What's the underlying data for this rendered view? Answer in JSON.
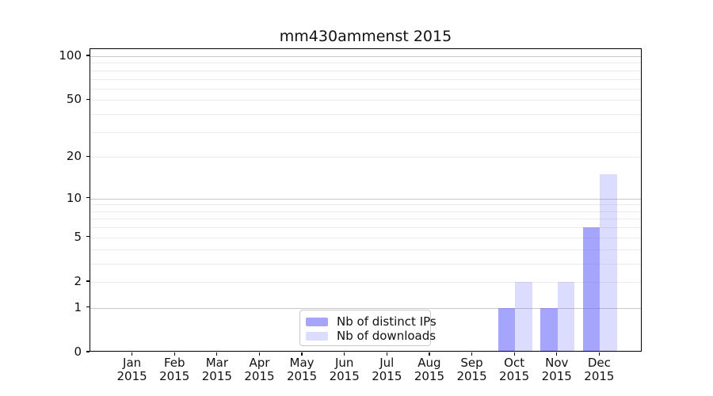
{
  "chart_data": {
    "type": "bar",
    "title": "mm430ammenst 2015",
    "categories": [
      "Jan",
      "Feb",
      "Mar",
      "Apr",
      "May",
      "Jun",
      "Jul",
      "Aug",
      "Sep",
      "Oct",
      "Nov",
      "Dec"
    ],
    "category_year": "2015",
    "series": [
      {
        "name": "Nb of distinct IPs",
        "color": "rgba(110,110,250,0.62)",
        "values": [
          0,
          0,
          0,
          0,
          0,
          0,
          0,
          0,
          0,
          1,
          1,
          6
        ]
      },
      {
        "name": "Nb of downloads",
        "color": "rgba(110,110,250,0.24)",
        "values": [
          0,
          0,
          0,
          0,
          0,
          0,
          0,
          0,
          0,
          2,
          2,
          15
        ]
      }
    ],
    "yticks": [
      0,
      1,
      2,
      5,
      10,
      20,
      50,
      100
    ],
    "grid_major_values": [
      1,
      10,
      100
    ],
    "grid_minor_values": [
      2,
      3,
      4,
      5,
      6,
      7,
      8,
      9,
      20,
      30,
      40,
      50,
      60,
      70,
      80,
      90
    ],
    "scale": "log10(1+x)",
    "ylim": [
      0,
      110
    ],
    "xlabel": "",
    "ylabel": "",
    "grid": "horizontal",
    "legend_position": "lower-center",
    "colors": {
      "grid_major": "#c8c8c8",
      "grid_minor": "#ebebeb",
      "axis": "#000000",
      "text": "#111111"
    }
  }
}
